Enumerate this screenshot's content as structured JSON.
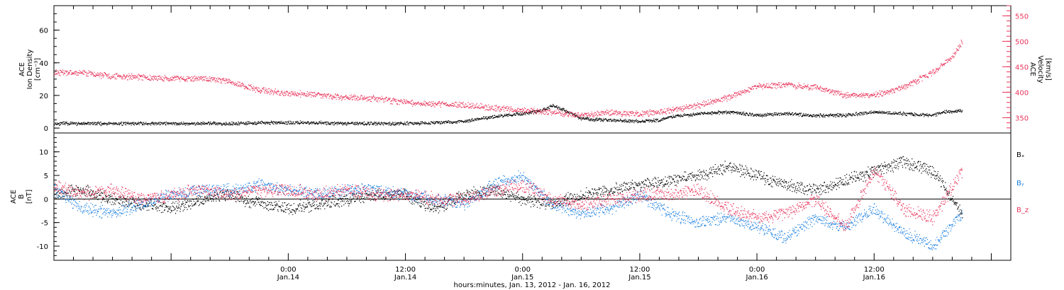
{
  "chart_data": [
    {
      "type": "scatter",
      "panel": "top",
      "ylabel": [
        "ACE",
        "Ion Density",
        "[cm⁻³]"
      ],
      "ylim": [
        -3,
        75
      ],
      "yticks": [
        0,
        20,
        40,
        60
      ],
      "y2label": [
        "ACE",
        "Velocity",
        "[km/s]"
      ],
      "y2lim": [
        320,
        570
      ],
      "y2ticks": [
        350,
        400,
        450,
        500,
        550
      ],
      "xlim_hours": [
        -24,
        74
      ],
      "series": [
        {
          "color": "#000000",
          "axis": "left",
          "x_hours": [
            -24,
            -21,
            -18,
            -15,
            -12,
            -9,
            -6,
            -3,
            0,
            3,
            6,
            9,
            12,
            15,
            18,
            21,
            22,
            24,
            26,
            27,
            28,
            30,
            33,
            36,
            38,
            39,
            42,
            45,
            48,
            51,
            54,
            57,
            60,
            63,
            66,
            67,
            69
          ],
          "values": [
            3,
            3,
            3,
            3,
            3,
            3,
            3,
            3.5,
            3.5,
            3.5,
            3,
            3,
            3,
            3.5,
            4.5,
            7,
            8,
            9,
            11,
            14,
            12,
            6,
            5,
            4.5,
            5,
            7,
            9,
            10,
            8,
            9,
            8,
            8,
            10,
            9,
            8,
            10,
            11
          ]
        },
        {
          "color": "#e8335a",
          "axis": "right",
          "x_hours": [
            -24,
            -21,
            -18,
            -15,
            -12,
            -9,
            -6,
            -3,
            0,
            3,
            6,
            9,
            12,
            15,
            18,
            21,
            24,
            27,
            30,
            33,
            36,
            39,
            42,
            45,
            48,
            51,
            54,
            57,
            60,
            63,
            66,
            68,
            69
          ],
          "values": [
            440,
            438,
            432,
            430,
            427,
            428,
            422,
            405,
            398,
            396,
            390,
            388,
            380,
            377,
            375,
            370,
            365,
            362,
            355,
            360,
            358,
            365,
            375,
            390,
            412,
            415,
            410,
            395,
            395,
            410,
            440,
            470,
            500
          ]
        }
      ]
    },
    {
      "type": "scatter",
      "panel": "bottom",
      "ylabel": [
        "ACE",
        "B",
        "[nT]"
      ],
      "ylim": [
        -13,
        14
      ],
      "yticks": [
        -10,
        -5,
        0,
        5,
        10
      ],
      "xlim_hours": [
        -24,
        74
      ],
      "xticks_hours": [
        0,
        12,
        24,
        36,
        48,
        60
      ],
      "xtick_labels": [
        [
          "0:00",
          "Jan.14"
        ],
        [
          "12:00",
          "Jan.14"
        ],
        [
          "0:00",
          "Jan.15"
        ],
        [
          "12:00",
          "Jan.15"
        ],
        [
          "0:00",
          "Jan.16"
        ],
        [
          "12:00",
          "Jan.16"
        ]
      ],
      "xlabel": "hours:minutes, Jan. 13, 2012 - Jan. 16, 2012",
      "series": [
        {
          "name": "Bₓ",
          "color": "#000000",
          "x_hours": [
            -24,
            -21,
            -18,
            -15,
            -12,
            -9,
            -6,
            -3,
            0,
            3,
            6,
            9,
            12,
            15,
            18,
            21,
            24,
            27,
            30,
            33,
            36,
            39,
            42,
            45,
            48,
            51,
            54,
            57,
            60,
            63,
            66,
            69
          ],
          "values": [
            1,
            2,
            0,
            -1,
            -2,
            0,
            1,
            -1,
            -2,
            -1,
            0,
            1,
            1,
            -2,
            1,
            2,
            0,
            -1,
            1,
            2,
            3,
            4,
            5,
            7,
            5,
            3,
            2,
            4,
            6,
            8,
            6,
            -3
          ]
        },
        {
          "name": "Bᵧ",
          "color": "#1a7fe0",
          "x_hours": [
            -24,
            -21,
            -18,
            -15,
            -12,
            -9,
            -6,
            -3,
            0,
            3,
            6,
            9,
            12,
            15,
            18,
            21,
            24,
            27,
            30,
            33,
            36,
            39,
            42,
            45,
            48,
            51,
            54,
            57,
            60,
            63,
            66,
            69
          ],
          "values": [
            2,
            -2,
            -3,
            -1,
            1,
            2,
            2,
            3,
            2,
            1,
            2,
            2,
            1,
            0,
            -1,
            3,
            5,
            -1,
            -3,
            -2,
            1,
            -3,
            -5,
            -4,
            -6,
            -8,
            -4,
            -6,
            -2,
            -7,
            -10,
            -3
          ]
        },
        {
          "name": "B_z",
          "color": "#e8335a",
          "x_hours": [
            -24,
            -21,
            -18,
            -15,
            -12,
            -9,
            -6,
            -3,
            0,
            3,
            6,
            9,
            12,
            15,
            18,
            21,
            24,
            27,
            30,
            33,
            36,
            39,
            42,
            45,
            48,
            51,
            54,
            57,
            60,
            63,
            66,
            69
          ],
          "values": [
            3,
            1,
            2,
            0,
            1,
            2,
            1,
            2,
            2,
            1,
            2,
            1,
            1,
            0,
            0,
            2,
            3,
            0,
            -1,
            0,
            1,
            1,
            2,
            -2,
            -4,
            -3,
            0,
            -6,
            6,
            -2,
            -4,
            6
          ]
        }
      ]
    }
  ]
}
